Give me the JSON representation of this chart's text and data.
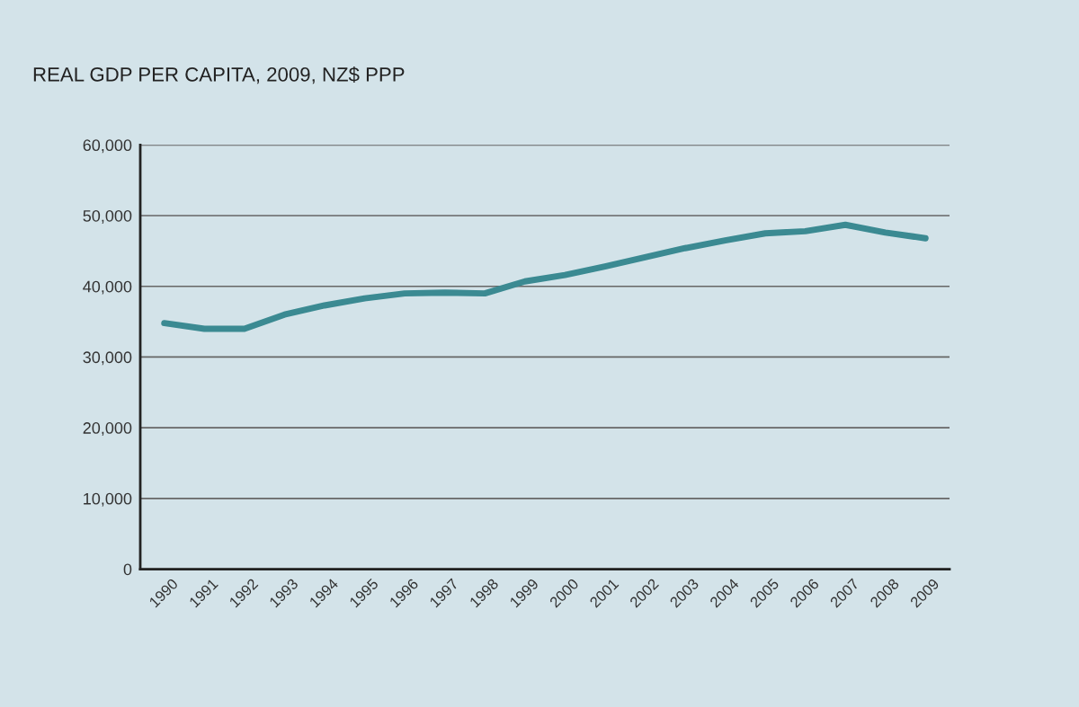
{
  "chart_data": {
    "type": "line",
    "title": "REAL GDP PER CAPITA, 2009, NZ$ PPP",
    "categories": [
      "1990",
      "1991",
      "1992",
      "1993",
      "1994",
      "1995",
      "1996",
      "1997",
      "1998",
      "1999",
      "2000",
      "2001",
      "2002",
      "2003",
      "2004",
      "2005",
      "2006",
      "2007",
      "2008",
      "2009"
    ],
    "series": [
      {
        "color": "#3b8a92",
        "values": [
          34800,
          34000,
          34000,
          36000,
          37300,
          38300,
          39000,
          39100,
          39000,
          40700,
          41600,
          42800,
          44100,
          45400,
          46500,
          47500,
          47800,
          48700,
          47600,
          46800
        ]
      }
    ],
    "ylim": [
      0,
      60000
    ],
    "yticks": [
      {
        "value": 0,
        "label": "0"
      },
      {
        "value": 10000,
        "label": "10,000"
      },
      {
        "value": 20000,
        "label": "20,000"
      },
      {
        "value": 30000,
        "label": "30,000"
      },
      {
        "value": 40000,
        "label": "40,000"
      },
      {
        "value": 50000,
        "label": "50,000"
      },
      {
        "value": 60000,
        "label": "60,000"
      }
    ],
    "grid": "y",
    "legend": false,
    "marker": "none",
    "line_style": "solid"
  }
}
